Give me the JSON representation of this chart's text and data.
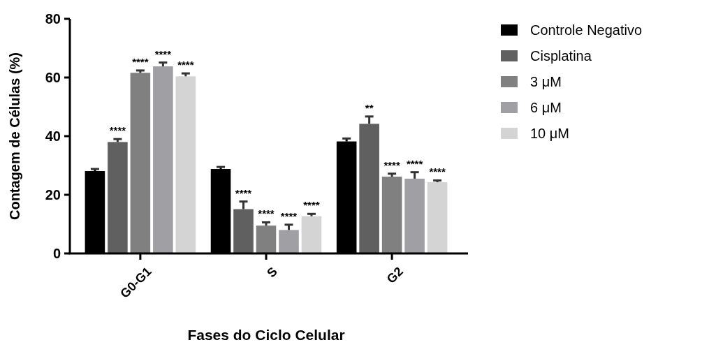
{
  "chart_data": {
    "type": "bar",
    "xlabel": "Fases do Ciclo Celular",
    "ylabel": "Contagem de Células (%)",
    "categories": [
      "G0-G1",
      "S",
      "G2"
    ],
    "ylim": [
      0,
      80
    ],
    "yticks": [
      0,
      20,
      40,
      60,
      80
    ],
    "grid": false,
    "legend": "right",
    "series": [
      {
        "name": "Controle Negativo",
        "color": "#000000",
        "values": [
          28.1,
          28.8,
          38.2
        ],
        "errors": [
          0.7,
          0.7,
          1.0
        ]
      },
      {
        "name": "Cisplatina",
        "color": "#606060",
        "values": [
          38.0,
          15.1,
          44.2
        ],
        "errors": [
          1.0,
          2.6,
          2.5
        ],
        "value_labels": [
          "****",
          "****",
          "**"
        ]
      },
      {
        "name": "3 μM",
        "color": "#808080",
        "values": [
          61.6,
          9.5,
          26.2
        ],
        "errors": [
          0.8,
          1.1,
          1.0
        ],
        "value_labels": [
          "****",
          "****",
          "****"
        ]
      },
      {
        "name": "6 μM",
        "color": "#a0a0a4",
        "values": [
          63.8,
          8.0,
          25.5
        ],
        "errors": [
          1.3,
          1.8,
          2.2
        ],
        "value_labels": [
          "****",
          "****",
          "****"
        ]
      },
      {
        "name": "10 μM",
        "color": "#d4d4d4",
        "values": [
          60.4,
          12.7,
          24.3
        ],
        "errors": [
          1.0,
          0.8,
          0.6
        ],
        "value_labels": [
          "****",
          "****",
          "****"
        ]
      }
    ]
  }
}
